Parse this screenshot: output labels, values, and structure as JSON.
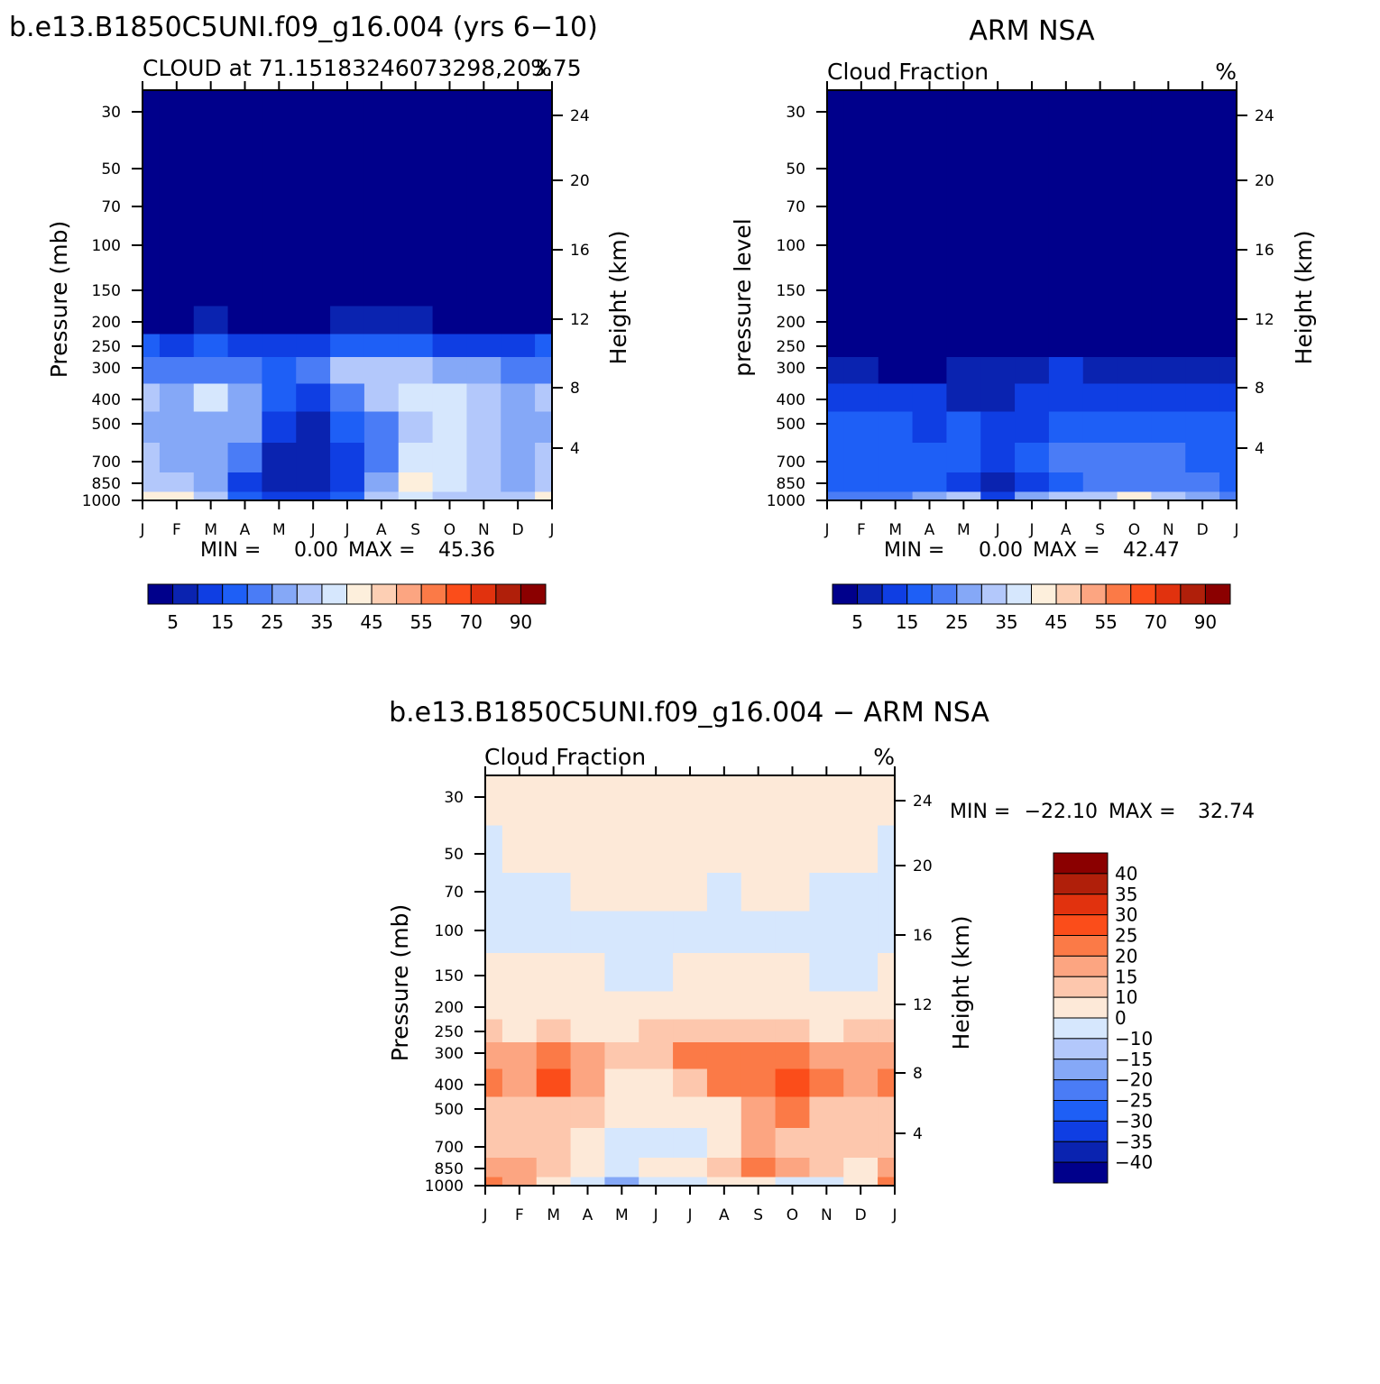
{
  "colors": {
    "cf_palette": [
      "#00008b",
      "#0a23b0",
      "#0f3ee3",
      "#1e5ff6",
      "#4a7cf6",
      "#85a8f7",
      "#b3c8fb",
      "#d6e7fd",
      "#fdefdc",
      "#fdcfb4",
      "#fca581",
      "#fb7a47",
      "#fb4d1a",
      "#e1320e",
      "#b01f0a",
      "#8b0000"
    ],
    "diff_palette": [
      "#00008b",
      "#0a23b0",
      "#0f3ee3",
      "#1e5ff6",
      "#4a7cf6",
      "#85a8f7",
      "#b3c8fb",
      "#d6e7fd",
      "#fde9d8",
      "#fdc7ad",
      "#fca581",
      "#fb7a47",
      "#fb4d1a",
      "#e1320e",
      "#b01f0a",
      "#8b0000"
    ]
  },
  "chart_data": [
    {
      "type": "heatmap",
      "title": "b.e13.B1850C5UNI.f09_g16.004 (yrs 6−10)",
      "subtitle_left": "CLOUD at 71.15183246073298,203.75",
      "subtitle_right": "%",
      "xlabel": "",
      "ylabel": "Pressure (mb)",
      "ylabel_right": "Height (km)",
      "x_ticks": [
        "J",
        "F",
        "M",
        "A",
        "M",
        "J",
        "J",
        "A",
        "S",
        "O",
        "N",
        "D",
        "J"
      ],
      "y_ticks": [
        "30",
        "50",
        "70",
        "100",
        "150",
        "200",
        "250",
        "300",
        "400",
        "500",
        "700",
        "850",
        "1000"
      ],
      "y_ticks_right": [
        "24",
        "20",
        "16",
        "12",
        "8",
        "4"
      ],
      "stats": {
        "min_label": "MIN =",
        "min": "0.00",
        "max_label": "MAX =",
        "max": "45.36"
      },
      "colorbar_labels": [
        "5",
        "15",
        "25",
        "35",
        "45",
        "55",
        "70",
        "90"
      ],
      "months": [
        1,
        2,
        3,
        4,
        5,
        6,
        7,
        8,
        9,
        10,
        11,
        12,
        13
      ],
      "pressure_levels": [
        30,
        50,
        70,
        100,
        150,
        200,
        250,
        300,
        400,
        500,
        700,
        850,
        1000
      ],
      "values": [
        [
          0,
          0,
          0,
          0,
          0,
          0,
          0,
          0,
          0,
          0,
          0,
          0,
          0
        ],
        [
          0,
          0,
          0,
          0,
          0,
          0,
          0,
          0,
          0,
          0,
          0,
          0,
          0
        ],
        [
          0,
          0,
          0,
          0,
          0,
          0,
          0,
          0,
          0,
          0,
          0,
          0,
          0
        ],
        [
          0,
          0,
          0,
          0,
          0,
          0,
          0,
          0,
          0,
          0,
          0,
          0,
          0
        ],
        [
          1,
          1,
          1,
          1,
          1,
          1,
          1,
          1,
          1,
          1,
          1,
          1,
          1
        ],
        [
          4,
          2,
          5,
          3,
          3,
          4,
          5,
          6,
          5,
          4,
          4,
          4,
          4
        ],
        [
          18,
          12,
          18,
          13,
          12,
          14,
          17,
          17,
          15,
          14,
          13,
          14,
          18
        ],
        [
          24,
          20,
          24,
          22,
          17,
          20,
          30,
          30,
          30,
          28,
          26,
          24,
          24
        ],
        [
          30,
          28,
          37,
          28,
          17,
          13,
          22,
          33,
          35,
          36,
          30,
          28,
          30
        ],
        [
          28,
          25,
          28,
          27,
          10,
          7,
          15,
          22,
          32,
          37,
          30,
          27,
          28
        ],
        [
          31,
          29,
          28,
          20,
          8,
          7,
          11,
          20,
          36,
          35,
          30,
          29,
          31
        ],
        [
          33,
          32,
          27,
          14,
          6,
          5,
          12,
          27,
          42,
          38,
          33,
          29,
          33
        ],
        [
          42,
          40,
          32,
          16,
          12,
          11,
          18,
          30,
          36,
          34,
          30,
          30,
          42
        ]
      ]
    },
    {
      "type": "heatmap",
      "title": "ARM NSA",
      "subtitle_left": "Cloud Fraction",
      "subtitle_right": "%",
      "xlabel": "",
      "ylabel": "pressure level",
      "ylabel_right": "Height (km)",
      "x_ticks": [
        "J",
        "F",
        "M",
        "A",
        "M",
        "J",
        "J",
        "A",
        "S",
        "O",
        "N",
        "D",
        "J"
      ],
      "y_ticks": [
        "30",
        "50",
        "70",
        "100",
        "150",
        "200",
        "250",
        "300",
        "400",
        "500",
        "700",
        "850",
        "1000"
      ],
      "y_ticks_right": [
        "24",
        "20",
        "16",
        "12",
        "8",
        "4"
      ],
      "stats": {
        "min_label": "MIN =",
        "min": "0.00",
        "max_label": "MAX =",
        "max": "42.47"
      },
      "colorbar_labels": [
        "5",
        "15",
        "25",
        "35",
        "45",
        "55",
        "70",
        "90"
      ],
      "months": [
        1,
        2,
        3,
        4,
        5,
        6,
        7,
        8,
        9,
        10,
        11,
        12,
        13
      ],
      "pressure_levels": [
        30,
        50,
        70,
        100,
        150,
        200,
        250,
        300,
        400,
        500,
        700,
        850,
        1000
      ],
      "values": [
        [
          0,
          0,
          0,
          0,
          0,
          0,
          0,
          0,
          0,
          0,
          0,
          0,
          0
        ],
        [
          0,
          0,
          0,
          0,
          0,
          0,
          0,
          0,
          0,
          0,
          0,
          0,
          0
        ],
        [
          0,
          0,
          0,
          0,
          0,
          0,
          0,
          0,
          0,
          0,
          0,
          0,
          0
        ],
        [
          0,
          0,
          0,
          0,
          0,
          0,
          0,
          0,
          0,
          0,
          0,
          0,
          0
        ],
        [
          0,
          0,
          0,
          0,
          0,
          0,
          0,
          0,
          0,
          0,
          0,
          0,
          0
        ],
        [
          1,
          1,
          1,
          1,
          1,
          1,
          1,
          1,
          1,
          1,
          1,
          1,
          1
        ],
        [
          2,
          2,
          2,
          2,
          2,
          2,
          2,
          4,
          3,
          2,
          2,
          2,
          2
        ],
        [
          7,
          6,
          4,
          4,
          5,
          7,
          8,
          10,
          8,
          7,
          7,
          8,
          7
        ],
        [
          10,
          10,
          11,
          11,
          9,
          9,
          11,
          14,
          12,
          12,
          11,
          12,
          10
        ],
        [
          16,
          16,
          15,
          13,
          18,
          13,
          13,
          18,
          17,
          18,
          18,
          17,
          16
        ],
        [
          19,
          19,
          18,
          15,
          18,
          14,
          15,
          20,
          20,
          21,
          20,
          19,
          19
        ],
        [
          18,
          17,
          17,
          15,
          12,
          8,
          14,
          16,
          20,
          22,
          21,
          20,
          18
        ],
        [
          20,
          22,
          24,
          26,
          30,
          14,
          26,
          30,
          32,
          42,
          32,
          26,
          20
        ]
      ]
    },
    {
      "type": "heatmap",
      "title": "b.e13.B1850C5UNI.f09_g16.004 − ARM NSA",
      "subtitle_left": "Cloud Fraction",
      "subtitle_right": "%",
      "xlabel": "",
      "ylabel": "Pressure (mb)",
      "ylabel_right": "Height (km)",
      "x_ticks": [
        "J",
        "F",
        "M",
        "A",
        "M",
        "J",
        "J",
        "A",
        "S",
        "O",
        "N",
        "D",
        "J"
      ],
      "y_ticks": [
        "30",
        "50",
        "70",
        "100",
        "150",
        "200",
        "250",
        "300",
        "400",
        "500",
        "700",
        "850",
        "1000"
      ],
      "y_ticks_right": [
        "24",
        "20",
        "16",
        "12",
        "8",
        "4"
      ],
      "stats": {
        "min_label": "MIN =",
        "min": "−22.10",
        "max_label": "MAX =",
        "max": "32.74"
      },
      "colorbar_labels": [
        "40",
        "35",
        "30",
        "25",
        "20",
        "15",
        "10",
        "0",
        "−10",
        "−15",
        "−20",
        "−25",
        "−30",
        "−35",
        "−40"
      ],
      "months": [
        1,
        2,
        3,
        4,
        5,
        6,
        7,
        8,
        9,
        10,
        11,
        12,
        13
      ],
      "pressure_levels": [
        30,
        50,
        70,
        100,
        150,
        200,
        250,
        300,
        400,
        500,
        700,
        850,
        1000
      ],
      "values": [
        [
          1,
          1,
          1,
          1,
          1,
          1,
          1,
          1,
          1,
          1,
          1,
          1,
          1
        ],
        [
          -1,
          1,
          1,
          1,
          1,
          1,
          1,
          1,
          1,
          1,
          1,
          1,
          -1
        ],
        [
          -1,
          -1,
          -1,
          1,
          1,
          1,
          1,
          -1,
          1,
          1,
          -1,
          -1,
          -1
        ],
        [
          -1,
          -1,
          -1,
          -1,
          -1,
          -1,
          -1,
          -1,
          -1,
          -1,
          -1,
          -1,
          -1
        ],
        [
          1,
          1,
          1,
          1,
          -1,
          -1,
          1,
          1,
          1,
          1,
          -1,
          -1,
          1
        ],
        [
          4,
          3,
          4,
          3,
          3,
          3,
          4,
          5,
          4,
          3,
          3,
          3,
          4
        ],
        [
          14,
          9,
          14,
          9,
          8,
          11,
          14,
          14,
          12,
          11,
          9,
          10,
          14
        ],
        [
          19,
          17,
          21,
          18,
          13,
          13,
          22,
          22,
          22,
          21,
          19,
          16,
          19
        ],
        [
          21,
          19,
          27,
          18,
          9,
          6,
          12,
          20,
          24,
          25,
          20,
          17,
          21
        ],
        [
          12,
          10,
          14,
          14,
          4,
          5,
          4,
          5,
          15,
          20,
          12,
          10,
          12
        ],
        [
          11,
          11,
          11,
          6,
          -2,
          -1,
          -1,
          1,
          16,
          14,
          10,
          10,
          11
        ],
        [
          16,
          16,
          11,
          3,
          -3,
          1,
          1,
          12,
          21,
          15,
          11,
          9,
          16
        ],
        [
          22,
          18,
          9,
          -3,
          -18,
          -3,
          -7,
          1,
          5,
          -8,
          -2,
          4,
          22
        ]
      ]
    }
  ]
}
